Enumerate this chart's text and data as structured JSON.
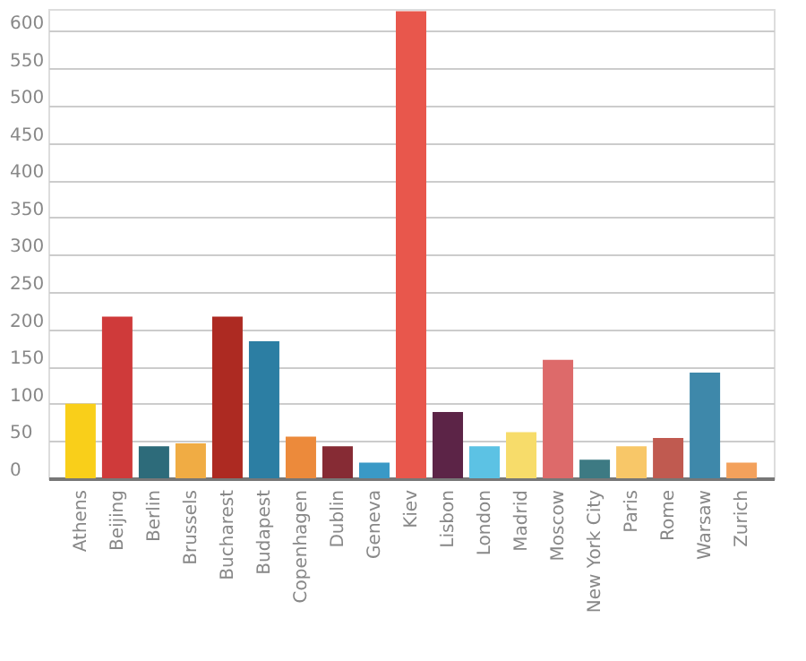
{
  "chart_data": {
    "type": "bar",
    "categories": [
      "Athens",
      "Beijing",
      "Berlin",
      "Brussels",
      "Bucharest",
      "Budapest",
      "Copenhagen",
      "Dublin",
      "Geneva",
      "Kiev",
      "Lisbon",
      "London",
      "Madrid",
      "Moscow",
      "New York City",
      "Paris",
      "Rome",
      "Warsaw",
      "Zurich"
    ],
    "values": [
      100,
      217,
      43,
      47,
      217,
      184,
      56,
      43,
      21,
      627,
      89,
      43,
      62,
      159,
      25,
      43,
      54,
      142,
      21
    ],
    "colors": [
      "#f9cf1a",
      "#cf3a3a",
      "#2d6b7a",
      "#f0ac44",
      "#ad2a22",
      "#2c7ea3",
      "#ec8a3b",
      "#862b34",
      "#3a99c6",
      "#e8574c",
      "#5c2447",
      "#5cc2e4",
      "#f7dc6a",
      "#dd6a6a",
      "#3d7a83",
      "#f8c768",
      "#c05a50",
      "#3e88aa",
      "#f3a15c"
    ],
    "ylim": [
      0,
      630
    ],
    "yticks": [
      0,
      50,
      100,
      150,
      200,
      250,
      300,
      350,
      400,
      450,
      500,
      550,
      600
    ],
    "grid": "y"
  }
}
